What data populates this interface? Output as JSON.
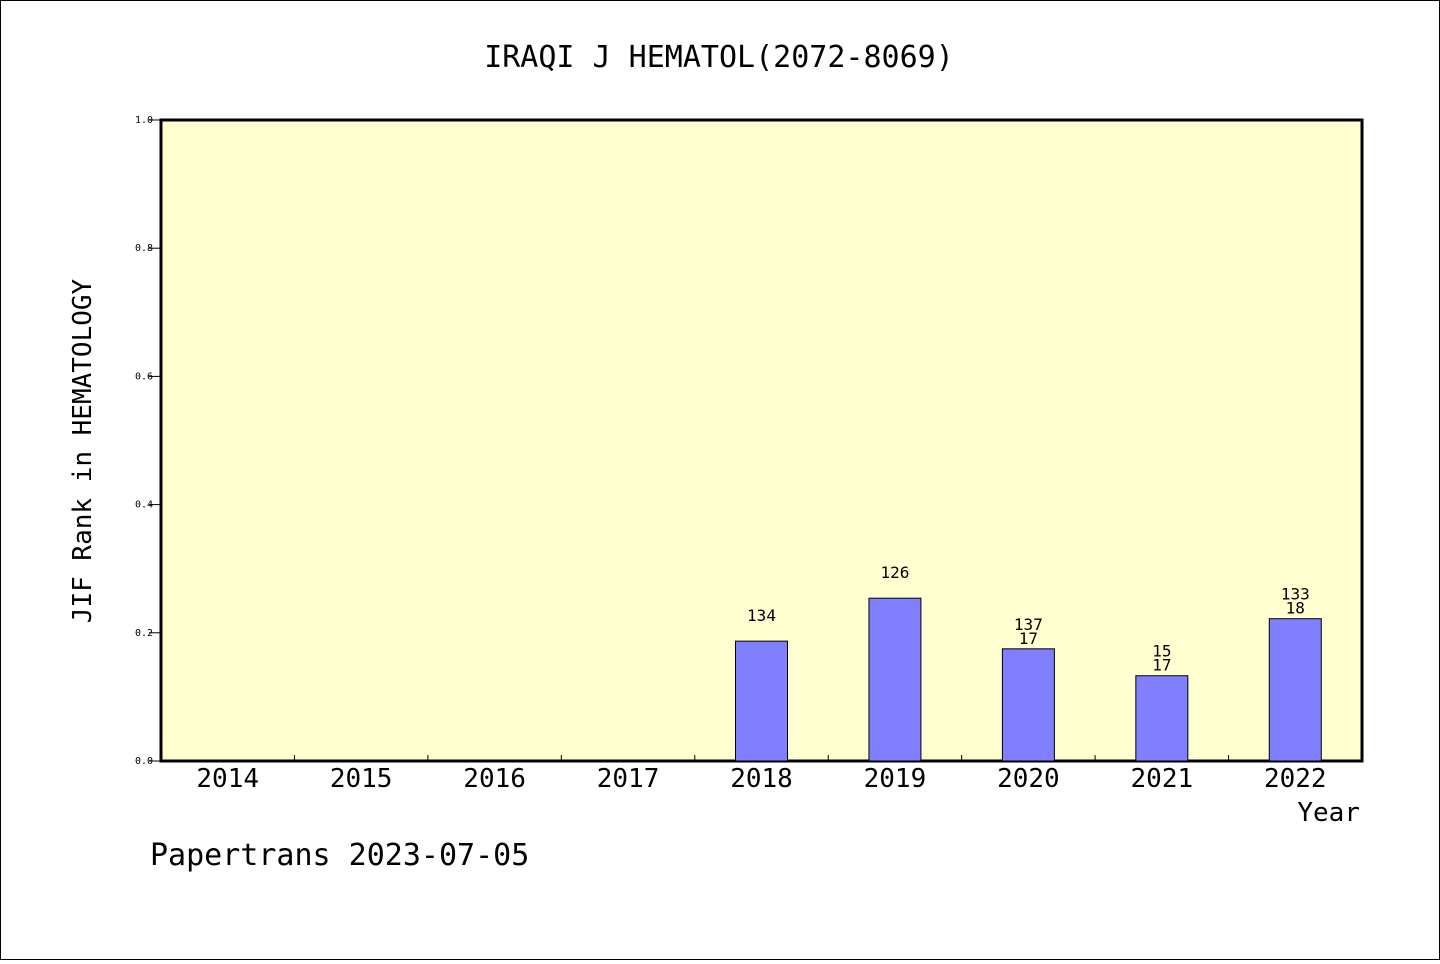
{
  "chart_data": {
    "type": "bar",
    "title": "IRAQI J HEMATOL(2072-8069)",
    "ylabel": "JIF Rank in HEMATOLOGY",
    "xlabel": "Year",
    "ylim": [
      0,
      1.0
    ],
    "yticks": [
      "0.0",
      "0.2",
      "0.4",
      "0.6",
      "0.8",
      "1.0"
    ],
    "categories": [
      "2014",
      "2015",
      "2016",
      "2017",
      "2018",
      "2019",
      "2020",
      "2021",
      "2022"
    ],
    "values": [
      null,
      null,
      null,
      null,
      0.187,
      0.254,
      0.175,
      0.133,
      0.222
    ],
    "label_top": [
      "",
      "",
      "",
      "",
      "134",
      "126",
      "137",
      "15",
      "133"
    ],
    "label_bottom": [
      "",
      "",
      "",
      "",
      "",
      "",
      "17",
      "17",
      "18"
    ],
    "bar_color": "#8080ff",
    "plot_background": "#ffffd0",
    "grid": false,
    "legend": "none"
  },
  "footer": {
    "credit": "Papertrans 2023-07-05"
  }
}
